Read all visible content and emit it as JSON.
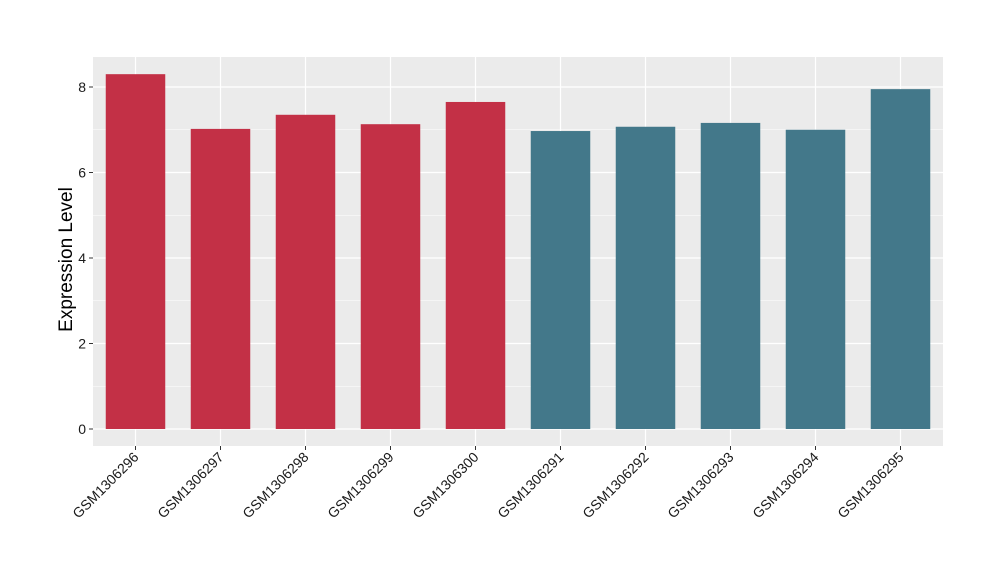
{
  "chart_data": {
    "type": "bar",
    "title": "",
    "xlabel": "",
    "ylabel": "Expression Level",
    "ylim": [
      0,
      8.75
    ],
    "yticks": [
      0,
      2,
      4,
      6,
      8
    ],
    "grid": true,
    "legend": "none",
    "categories": [
      "GSM1306296",
      "GSM1306297",
      "GSM1306298",
      "GSM1306299",
      "GSM1306300",
      "GSM1306291",
      "GSM1306292",
      "GSM1306293",
      "GSM1306294",
      "GSM1306295"
    ],
    "values": [
      8.3,
      7.02,
      7.35,
      7.13,
      7.65,
      6.97,
      7.07,
      7.16,
      7.0,
      7.95
    ],
    "bar_colors": [
      "#c33046",
      "#c33046",
      "#c33046",
      "#c33046",
      "#c33046",
      "#43788a",
      "#43788a",
      "#43788a",
      "#43788a",
      "#43788a"
    ],
    "panel_color": "#ebebeb",
    "grid_color": "#ffffff"
  }
}
